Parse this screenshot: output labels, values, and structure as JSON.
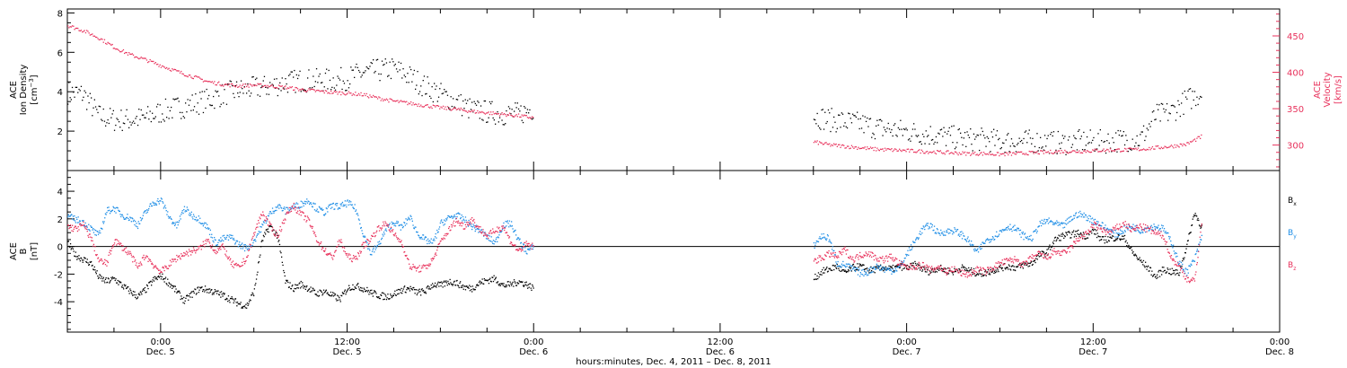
{
  "figure": {
    "xlabel": "hours:minutes, Dec.  4, 2011 – Dec.  8, 2011",
    "xticks": [
      {
        "time": "0:00",
        "date": "Dec. 5",
        "t": 0
      },
      {
        "time": "12:00",
        "date": "Dec. 5",
        "t": 12
      },
      {
        "time": "0:00",
        "date": "Dec. 6",
        "t": 24
      },
      {
        "time": "12:00",
        "date": "Dec. 6",
        "t": 36
      },
      {
        "time": "0:00",
        "date": "Dec. 7",
        "t": 48
      },
      {
        "time": "12:00",
        "date": "Dec. 7",
        "t": 60
      },
      {
        "time": "0:00",
        "date": "Dec. 8",
        "t": 72
      }
    ]
  },
  "colors": {
    "black": "#000000",
    "red": "#e8325c",
    "blue": "#1f8ee6"
  },
  "chart_data": [
    {
      "type": "scatter",
      "panel": "top",
      "xlim": [
        -6,
        72
      ],
      "grid": false,
      "left_axis": {
        "label_line1": "ACE",
        "label_line2": "Ion Density",
        "units_base": "[cm",
        "units_sup": "−3",
        "units_close": "]",
        "ylim": [
          0,
          8.2
        ],
        "ticks": [
          2,
          4,
          6,
          8
        ]
      },
      "right_axis": {
        "label_line1": "ACE",
        "label_line2": "Velocity",
        "units": "[km/s]",
        "ylim": [
          265,
          487
        ],
        "ticks": [
          300,
          350,
          400,
          450
        ]
      },
      "series": [
        {
          "name": "Ion Density",
          "axis": "left",
          "color": "#000000",
          "x": [
            -6,
            -5,
            -4,
            -3,
            -2,
            -1,
            0,
            1,
            2,
            3,
            4,
            5,
            6,
            7,
            8,
            9,
            10,
            11,
            12,
            13,
            14,
            15,
            16,
            17,
            18,
            19,
            20,
            21,
            22,
            23,
            24,
            42,
            43,
            44,
            45,
            46,
            47,
            48,
            49,
            50,
            51,
            52,
            53,
            54,
            55,
            56,
            57,
            58,
            59,
            60,
            61,
            62,
            63,
            64,
            65,
            66,
            67
          ],
          "y": [
            4.0,
            3.9,
            2.8,
            2.6,
            2.6,
            2.7,
            3.0,
            3.2,
            3.4,
            3.6,
            3.9,
            4.1,
            4.2,
            4.3,
            4.5,
            4.6,
            4.6,
            4.6,
            4.7,
            5.0,
            5.1,
            5.2,
            4.8,
            4.3,
            3.9,
            3.5,
            3.1,
            3.0,
            2.9,
            2.9,
            3.2,
            2.8,
            2.6,
            2.5,
            2.4,
            2.2,
            2.1,
            2.0,
            1.9,
            1.8,
            1.7,
            1.6,
            1.6,
            1.5,
            1.5,
            1.5,
            1.5,
            1.4,
            1.5,
            1.5,
            1.5,
            1.6,
            1.6,
            2.8,
            3.0,
            3.6,
            4.0
          ]
        },
        {
          "name": "Velocity",
          "axis": "right",
          "color": "#e8325c",
          "x": [
            -6,
            -5,
            -4,
            -3,
            -2,
            -1,
            0,
            1,
            2,
            3,
            4,
            5,
            6,
            7,
            8,
            9,
            10,
            11,
            12,
            13,
            14,
            15,
            16,
            17,
            18,
            19,
            20,
            21,
            22,
            23,
            24,
            42,
            43,
            44,
            45,
            46,
            47,
            48,
            49,
            50,
            51,
            52,
            53,
            54,
            55,
            56,
            57,
            58,
            59,
            60,
            61,
            62,
            63,
            64,
            65,
            66,
            67
          ],
          "y": [
            465,
            458,
            448,
            435,
            425,
            418,
            410,
            402,
            395,
            388,
            384,
            382,
            383,
            382,
            380,
            377,
            375,
            373,
            372,
            370,
            365,
            361,
            358,
            355,
            352,
            350,
            347,
            345,
            343,
            341,
            338,
            305,
            301,
            299,
            297,
            295,
            294,
            293,
            292,
            291,
            290,
            289,
            289,
            288,
            289,
            290,
            291,
            292,
            292,
            293,
            294,
            294,
            295,
            297,
            299,
            302,
            313
          ]
        }
      ]
    },
    {
      "type": "scatter",
      "panel": "bottom",
      "xlim": [
        -6,
        72
      ],
      "grid": false,
      "zero_line": true,
      "left_axis": {
        "label_line1": "ACE",
        "label_line2": "B",
        "units": "[nT]",
        "ylim": [
          -6.2,
          5.5
        ],
        "ticks": [
          -4,
          -2,
          0,
          2,
          4
        ]
      },
      "legend_position": "right",
      "series": [
        {
          "name": "B",
          "sub": "x",
          "color": "#000000",
          "x": [
            -6,
            -5.5,
            -5,
            -4.5,
            -4,
            -3.5,
            -3,
            -2.5,
            -2,
            -1.5,
            -1,
            -0.5,
            0,
            0.5,
            1,
            1.5,
            2,
            2.5,
            3,
            3.5,
            4,
            4.5,
            5,
            5.5,
            6,
            6.5,
            7,
            7.5,
            8,
            8.5,
            9,
            9.5,
            10,
            10.5,
            11,
            11.5,
            12,
            12.5,
            13,
            13.5,
            14,
            14.5,
            15,
            15.5,
            16,
            16.5,
            17,
            17.5,
            18,
            18.5,
            19,
            19.5,
            20,
            20.5,
            21,
            21.5,
            22,
            22.5,
            23,
            23.5,
            24,
            42,
            42.5,
            43,
            43.5,
            44,
            44.5,
            45,
            45.5,
            46,
            46.5,
            47,
            47.5,
            48,
            48.5,
            49,
            49.5,
            50,
            50.5,
            51,
            51.5,
            52,
            52.5,
            53,
            53.5,
            54,
            54.5,
            55,
            55.5,
            56,
            56.5,
            57,
            57.5,
            58,
            58.5,
            59,
            59.5,
            60,
            60.5,
            61,
            61.5,
            62,
            62.5,
            63,
            63.5,
            64,
            64.5,
            65,
            65.5,
            66,
            66.5,
            67
          ],
          "y": [
            0.3,
            -0.6,
            -0.9,
            -1.2,
            -2.2,
            -2.5,
            -2.3,
            -2.8,
            -3.2,
            -3.6,
            -3.1,
            -2.4,
            -2.1,
            -2.6,
            -3.2,
            -3.9,
            -3.4,
            -3.0,
            -3.1,
            -3.3,
            -3.5,
            -3.8,
            -4.1,
            -4.3,
            -3.2,
            0.5,
            1.5,
            0.8,
            -2.5,
            -3.0,
            -2.7,
            -3.0,
            -3.4,
            -3.2,
            -3.5,
            -3.8,
            -3.0,
            -2.8,
            -3.0,
            -3.3,
            -3.5,
            -3.6,
            -3.4,
            -3.1,
            -3.0,
            -3.3,
            -3.2,
            -2.7,
            -2.8,
            -2.5,
            -2.6,
            -2.9,
            -3.0,
            -2.6,
            -2.4,
            -2.3,
            -2.8,
            -2.7,
            -2.5,
            -2.7,
            -3.0,
            -2.3,
            -1.8,
            -1.6,
            -1.4,
            -1.9,
            -1.5,
            -1.4,
            -1.7,
            -1.6,
            -1.5,
            -1.6,
            -1.4,
            -1.5,
            -1.3,
            -1.6,
            -1.8,
            -1.5,
            -1.7,
            -1.8,
            -1.5,
            -1.7,
            -1.9,
            -1.9,
            -1.7,
            -1.5,
            -1.4,
            -1.5,
            -1.3,
            -1.2,
            -0.6,
            -0.4,
            0.5,
            0.8,
            0.9,
            1.0,
            0.8,
            1.2,
            0.5,
            0.6,
            0.7,
            0.6,
            -0.4,
            -1.0,
            -1.5,
            -2.2,
            -1.6,
            -1.8,
            -1.9,
            0.1,
            2.5,
            1.3
          ]
        },
        {
          "name": "B",
          "sub": "y",
          "color": "#1f8ee6",
          "x": [
            -6,
            -5.5,
            -5,
            -4.5,
            -4,
            -3.5,
            -3,
            -2.5,
            -2,
            -1.5,
            -1,
            -0.5,
            0,
            0.5,
            1,
            1.5,
            2,
            2.5,
            3,
            3.5,
            4,
            4.5,
            5,
            5.5,
            6,
            6.5,
            7,
            7.5,
            8,
            8.5,
            9,
            9.5,
            10,
            10.5,
            11,
            11.5,
            12,
            12.5,
            13,
            13.5,
            14,
            14.5,
            15,
            15.5,
            16,
            16.5,
            17,
            17.5,
            18,
            18.5,
            19,
            19.5,
            20,
            20.5,
            21,
            21.5,
            22,
            22.5,
            23,
            23.5,
            24,
            42,
            42.5,
            43,
            43.5,
            44,
            44.5,
            45,
            45.5,
            46,
            46.5,
            47,
            47.5,
            48,
            48.5,
            49,
            49.5,
            50,
            50.5,
            51,
            51.5,
            52,
            52.5,
            53,
            53.5,
            54,
            54.5,
            55,
            55.5,
            56,
            56.5,
            57,
            57.5,
            58,
            58.5,
            59,
            59.5,
            60,
            60.5,
            61,
            61.5,
            62,
            62.5,
            63,
            63.5,
            64,
            64.5,
            65,
            65.5,
            66,
            66.5,
            67
          ],
          "y": [
            2.2,
            2.0,
            1.8,
            1.3,
            0.8,
            2.6,
            2.8,
            2.3,
            2.1,
            1.6,
            2.5,
            3.2,
            3.4,
            2.2,
            1.5,
            2.8,
            2.3,
            2.0,
            1.4,
            0.3,
            0.6,
            0.7,
            0.2,
            -0.1,
            0.5,
            1.5,
            2.4,
            3.0,
            2.6,
            2.9,
            3.1,
            3.4,
            2.8,
            2.5,
            3.0,
            2.9,
            3.2,
            2.8,
            1.0,
            -0.5,
            0.2,
            1.3,
            1.8,
            1.4,
            2.2,
            1.0,
            0.5,
            0.3,
            1.7,
            2.1,
            2.3,
            2.0,
            1.5,
            1.2,
            0.7,
            0.3,
            1.6,
            1.7,
            0.5,
            -0.3,
            0.0,
            0.1,
            0.8,
            0.6,
            -1.2,
            -1.3,
            -1.6,
            -1.9,
            -1.8,
            -1.4,
            -1.6,
            -1.7,
            -1.5,
            -0.5,
            0.4,
            1.3,
            1.6,
            1.0,
            1.1,
            1.2,
            0.9,
            0.4,
            -0.4,
            0.4,
            0.7,
            1.1,
            1.5,
            1.3,
            0.8,
            0.6,
            1.6,
            1.9,
            1.7,
            1.5,
            2.0,
            2.4,
            2.2,
            1.9,
            1.6,
            1.2,
            0.9,
            1.3,
            1.5,
            1.2,
            1.4,
            1.5,
            1.3,
            0.4,
            -1.2,
            -1.8,
            -0.9,
            0.9
          ]
        },
        {
          "name": "B",
          "sub": "z",
          "color": "#e8325c",
          "x": [
            -6,
            -5.5,
            -5,
            -4.5,
            -4,
            -3.5,
            -3,
            -2.5,
            -2,
            -1.5,
            -1,
            -0.5,
            0,
            0.5,
            1,
            1.5,
            2,
            2.5,
            3,
            3.5,
            4,
            4.5,
            5,
            5.5,
            6,
            6.5,
            7,
            7.5,
            8,
            8.5,
            9,
            9.5,
            10,
            10.5,
            11,
            11.5,
            12,
            12.5,
            13,
            13.5,
            14,
            14.5,
            15,
            15.5,
            16,
            16.5,
            17,
            17.5,
            18,
            18.5,
            19,
            19.5,
            20,
            20.5,
            21,
            21.5,
            22,
            22.5,
            23,
            23.5,
            24,
            42,
            42.5,
            43,
            43.5,
            44,
            44.5,
            45,
            45.5,
            46,
            46.5,
            47,
            47.5,
            48,
            48.5,
            49,
            49.5,
            50,
            50.5,
            51,
            51.5,
            52,
            52.5,
            53,
            53.5,
            54,
            54.5,
            55,
            55.5,
            56,
            56.5,
            57,
            57.5,
            58,
            58.5,
            59,
            59.5,
            60,
            60.5,
            61,
            61.5,
            62,
            62.5,
            63,
            63.5,
            64,
            64.5,
            65,
            65.5,
            66,
            66.5,
            67
          ],
          "y": [
            1.5,
            1.3,
            1.6,
            0.6,
            -1.0,
            -1.2,
            0.5,
            0.0,
            -0.5,
            -1.5,
            -0.6,
            -1.3,
            -1.8,
            -1.3,
            -0.8,
            -0.5,
            -0.3,
            -0.1,
            0.5,
            -0.3,
            0.0,
            -1.2,
            -1.5,
            -0.8,
            1.0,
            2.5,
            1.5,
            0.8,
            2.2,
            3.0,
            2.4,
            1.9,
            0.6,
            -0.2,
            -0.8,
            0.5,
            -0.7,
            -0.9,
            0.1,
            0.6,
            1.4,
            1.7,
            0.9,
            0.3,
            -1.4,
            -1.6,
            -1.5,
            -0.9,
            0.4,
            1.2,
            1.9,
            1.5,
            2.0,
            1.3,
            0.8,
            1.2,
            1.5,
            0.4,
            -0.3,
            0.2,
            0.0,
            -1.0,
            -0.8,
            -0.5,
            -0.7,
            -0.2,
            -0.9,
            -0.6,
            -0.4,
            -0.8,
            -0.9,
            -0.7,
            -1.2,
            -1.5,
            -1.4,
            -1.3,
            -1.7,
            -1.4,
            -1.8,
            -1.6,
            -1.9,
            -2.0,
            -1.6,
            -1.8,
            -1.5,
            -1.2,
            -1.0,
            -0.9,
            -1.3,
            -0.8,
            -0.5,
            -0.8,
            -0.3,
            -0.5,
            -0.1,
            0.6,
            0.9,
            1.6,
            1.3,
            1.0,
            1.4,
            1.7,
            1.2,
            1.5,
            1.3,
            1.0,
            0.8,
            -0.8,
            -1.4,
            -2.3,
            -2.5,
            2.2
          ]
        }
      ]
    }
  ]
}
